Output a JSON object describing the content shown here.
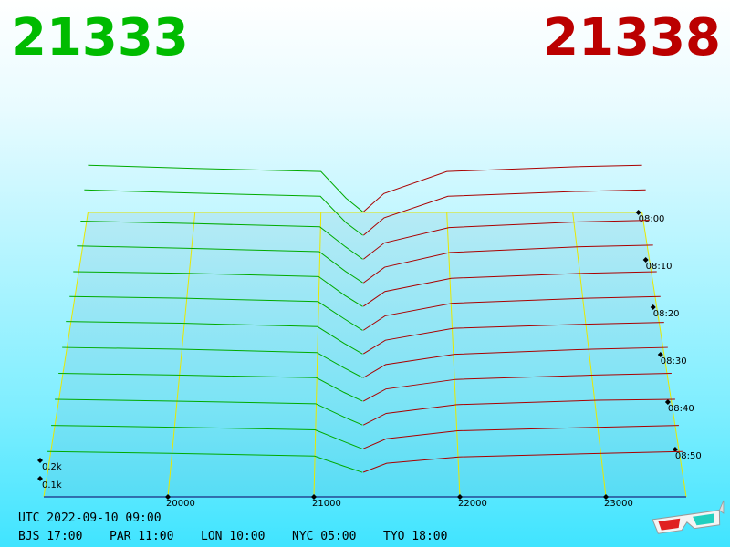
{
  "header": {
    "bid": "21333",
    "ask": "21338",
    "bid_color": "#00bb00",
    "ask_color": "#bb0000"
  },
  "chart_data": {
    "type": "depth3d",
    "xlim": [
      19150,
      23550
    ],
    "xticks": [
      20000,
      21000,
      22000,
      23000
    ],
    "ylim": [
      0,
      300
    ],
    "yticks": [
      {
        "value": 200,
        "label": "0.2k"
      },
      {
        "value": 100,
        "label": "0.1k"
      }
    ],
    "zlim": [
      0,
      60
    ],
    "zticks": [
      {
        "value": 0,
        "label": "08:00"
      },
      {
        "value": 10,
        "label": "08:10"
      },
      {
        "value": 20,
        "label": "08:20"
      },
      {
        "value": 30,
        "label": "08:30"
      },
      {
        "value": 40,
        "label": "08:40"
      },
      {
        "value": 50,
        "label": "08:50"
      }
    ],
    "bid_color": "#00aa00",
    "ask_color": "#aa0000",
    "bid_prices": [
      19150,
      20000,
      21000,
      21200,
      21333
    ],
    "ask_prices": [
      21338,
      21500,
      22000,
      23000,
      23550
    ],
    "snapshots": [
      {
        "t": 0,
        "bids": [
          300,
          280,
          260,
          90,
          4
        ],
        "asks": [
          4,
          120,
          260,
          290,
          300
        ]
      },
      {
        "t": 5,
        "bids": [
          290,
          270,
          250,
          85,
          5
        ],
        "asks": [
          5,
          115,
          250,
          280,
          290
        ]
      },
      {
        "t": 10,
        "bids": [
          240,
          225,
          205,
          80,
          4
        ],
        "asks": [
          4,
          105,
          200,
          235,
          245
        ]
      },
      {
        "t": 15,
        "bids": [
          230,
          215,
          195,
          75,
          5
        ],
        "asks": [
          4,
          100,
          190,
          225,
          235
        ]
      },
      {
        "t": 20,
        "bids": [
          215,
          205,
          185,
          70,
          4
        ],
        "asks": [
          5,
          95,
          175,
          205,
          215
        ]
      },
      {
        "t": 25,
        "bids": [
          205,
          195,
          175,
          70,
          3
        ],
        "asks": [
          4,
          90,
          165,
          195,
          205
        ]
      },
      {
        "t": 30,
        "bids": [
          195,
          185,
          165,
          65,
          4
        ],
        "asks": [
          5,
          85,
          155,
          180,
          190
        ]
      },
      {
        "t": 35,
        "bids": [
          180,
          170,
          150,
          60,
          4
        ],
        "asks": [
          4,
          80,
          140,
          170,
          180
        ]
      },
      {
        "t": 40,
        "bids": [
          165,
          155,
          140,
          55,
          5
        ],
        "asks": [
          5,
          75,
          130,
          155,
          165
        ]
      },
      {
        "t": 45,
        "bids": [
          150,
          140,
          125,
          50,
          4
        ],
        "asks": [
          4,
          70,
          120,
          145,
          150
        ]
      },
      {
        "t": 50,
        "bids": [
          135,
          125,
          110,
          45,
          3
        ],
        "asks": [
          4,
          60,
          105,
          125,
          135
        ]
      },
      {
        "t": 55,
        "bids": [
          120,
          110,
          95,
          40,
          4
        ],
        "asks": [
          5,
          55,
          90,
          110,
          120
        ]
      }
    ]
  },
  "footer": {
    "utc": "UTC 2022-09-10 09:00",
    "zones": [
      "BJS 17:00",
      "PAR 11:00",
      "LON 10:00",
      "NYC 05:00",
      "TYO 18:00"
    ]
  }
}
